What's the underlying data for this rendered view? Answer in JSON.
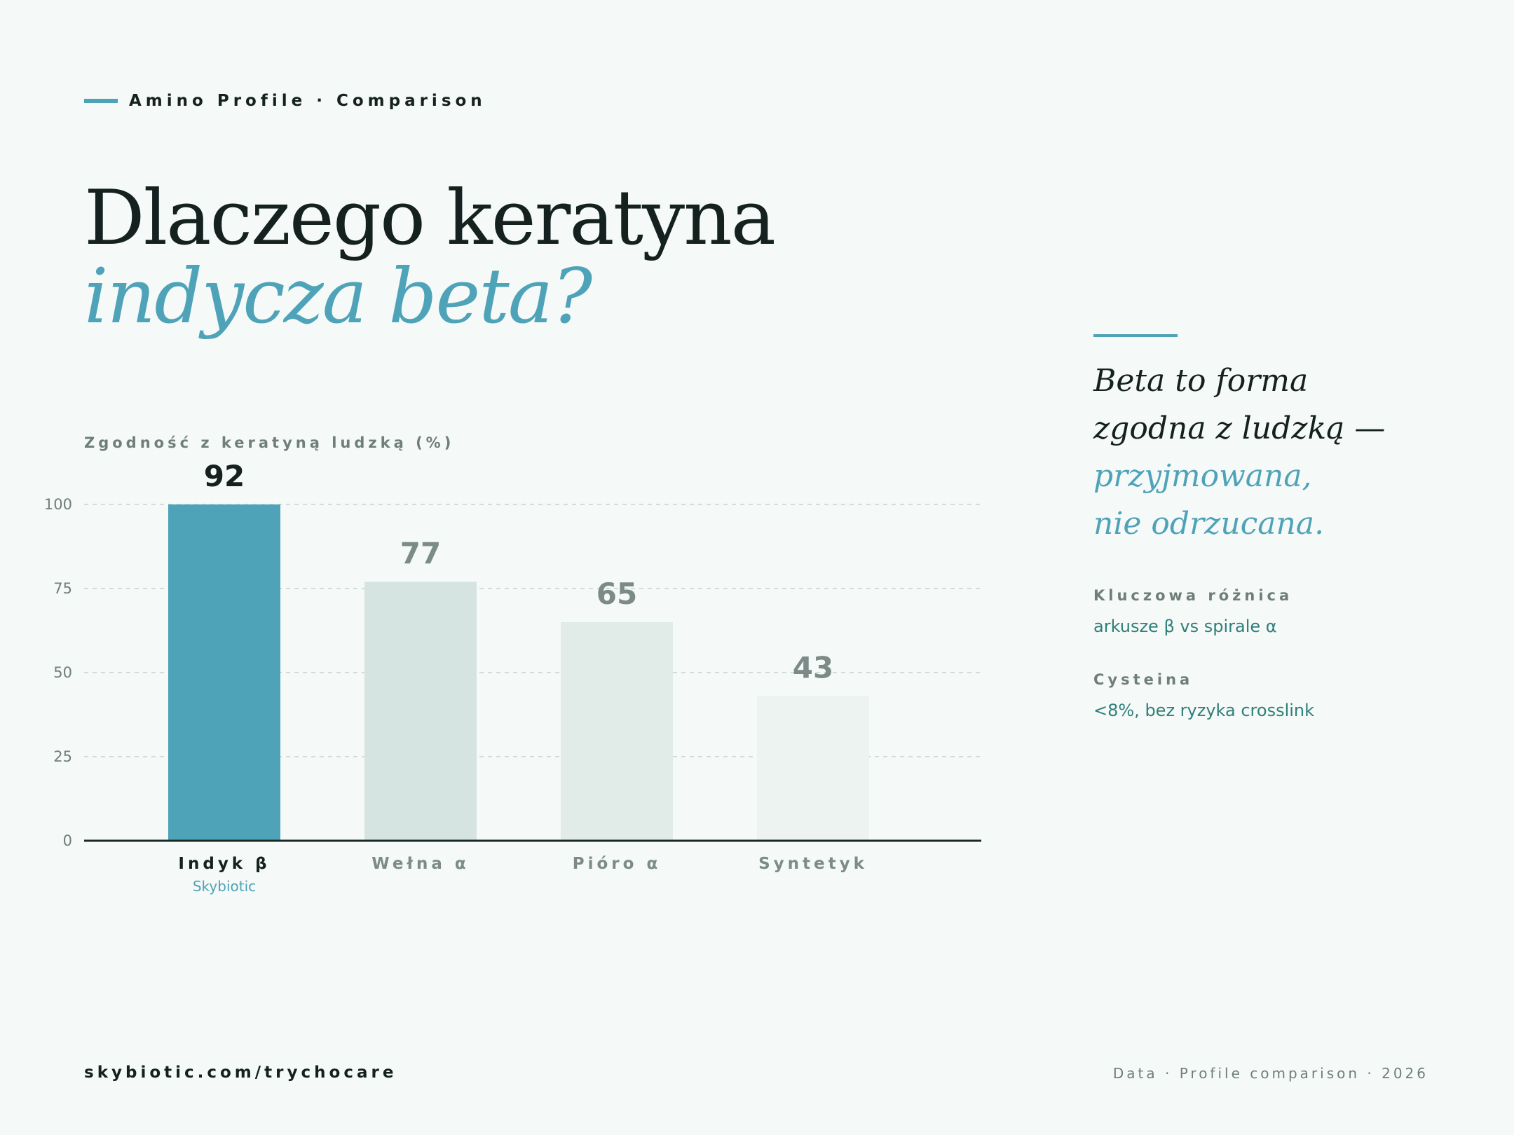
{
  "eyebrow": "Amino Profile · Comparison",
  "headline": {
    "line1": "Dlaczego keratyna",
    "line2": "indycza beta?"
  },
  "chart_caption": "Zgodność z keratyną ludzką (%)",
  "chart_data": {
    "type": "bar",
    "title": "",
    "ylabel": "Zgodność z keratyną ludzką (%)",
    "xlabel": "",
    "categories": [
      "Indyk β",
      "Wełna α",
      "Pióro α",
      "Syntetyk"
    ],
    "category_sublabels": [
      "Skybiotic",
      "",
      "",
      ""
    ],
    "values": [
      92,
      77,
      65,
      43
    ],
    "bar_heights_shown": [
      100,
      77,
      65,
      43
    ],
    "ylim": [
      0,
      100
    ],
    "yticks": [
      0,
      25,
      50,
      75,
      100
    ],
    "grid": true,
    "bar_colors": [
      "#4fa3b8",
      "#d6e4e1",
      "#e1ebe8",
      "#edf3f1"
    ],
    "label_colors": [
      "#14211f",
      "#7c8b87",
      "#7c8b87",
      "#7c8b87"
    ],
    "category_label_colors": [
      "#14211f",
      "#7c8b87",
      "#7c8b87",
      "#7c8b87"
    ]
  },
  "side": {
    "quote_line1": "Beta to forma",
    "quote_line2": "zgodna z ludzką —",
    "quote_line3": "przyjmowana,",
    "quote_line4": "nie odrzucana.",
    "facts": [
      {
        "title": "Kluczowa różnica",
        "value": "arkusze β vs spirale α"
      },
      {
        "title": "Cysteina",
        "value": "<8%, bez ryzyka crosslink"
      }
    ]
  },
  "footer": {
    "left": "skybiotic.com/trychocare",
    "right": "Data · Profile comparison · 2026"
  },
  "colors": {
    "accent": "#4fa3b8",
    "ink": "#14211f",
    "muted": "#6f7e7b",
    "background": "#f5f9f8",
    "fact_text": "#2f7f7a"
  }
}
